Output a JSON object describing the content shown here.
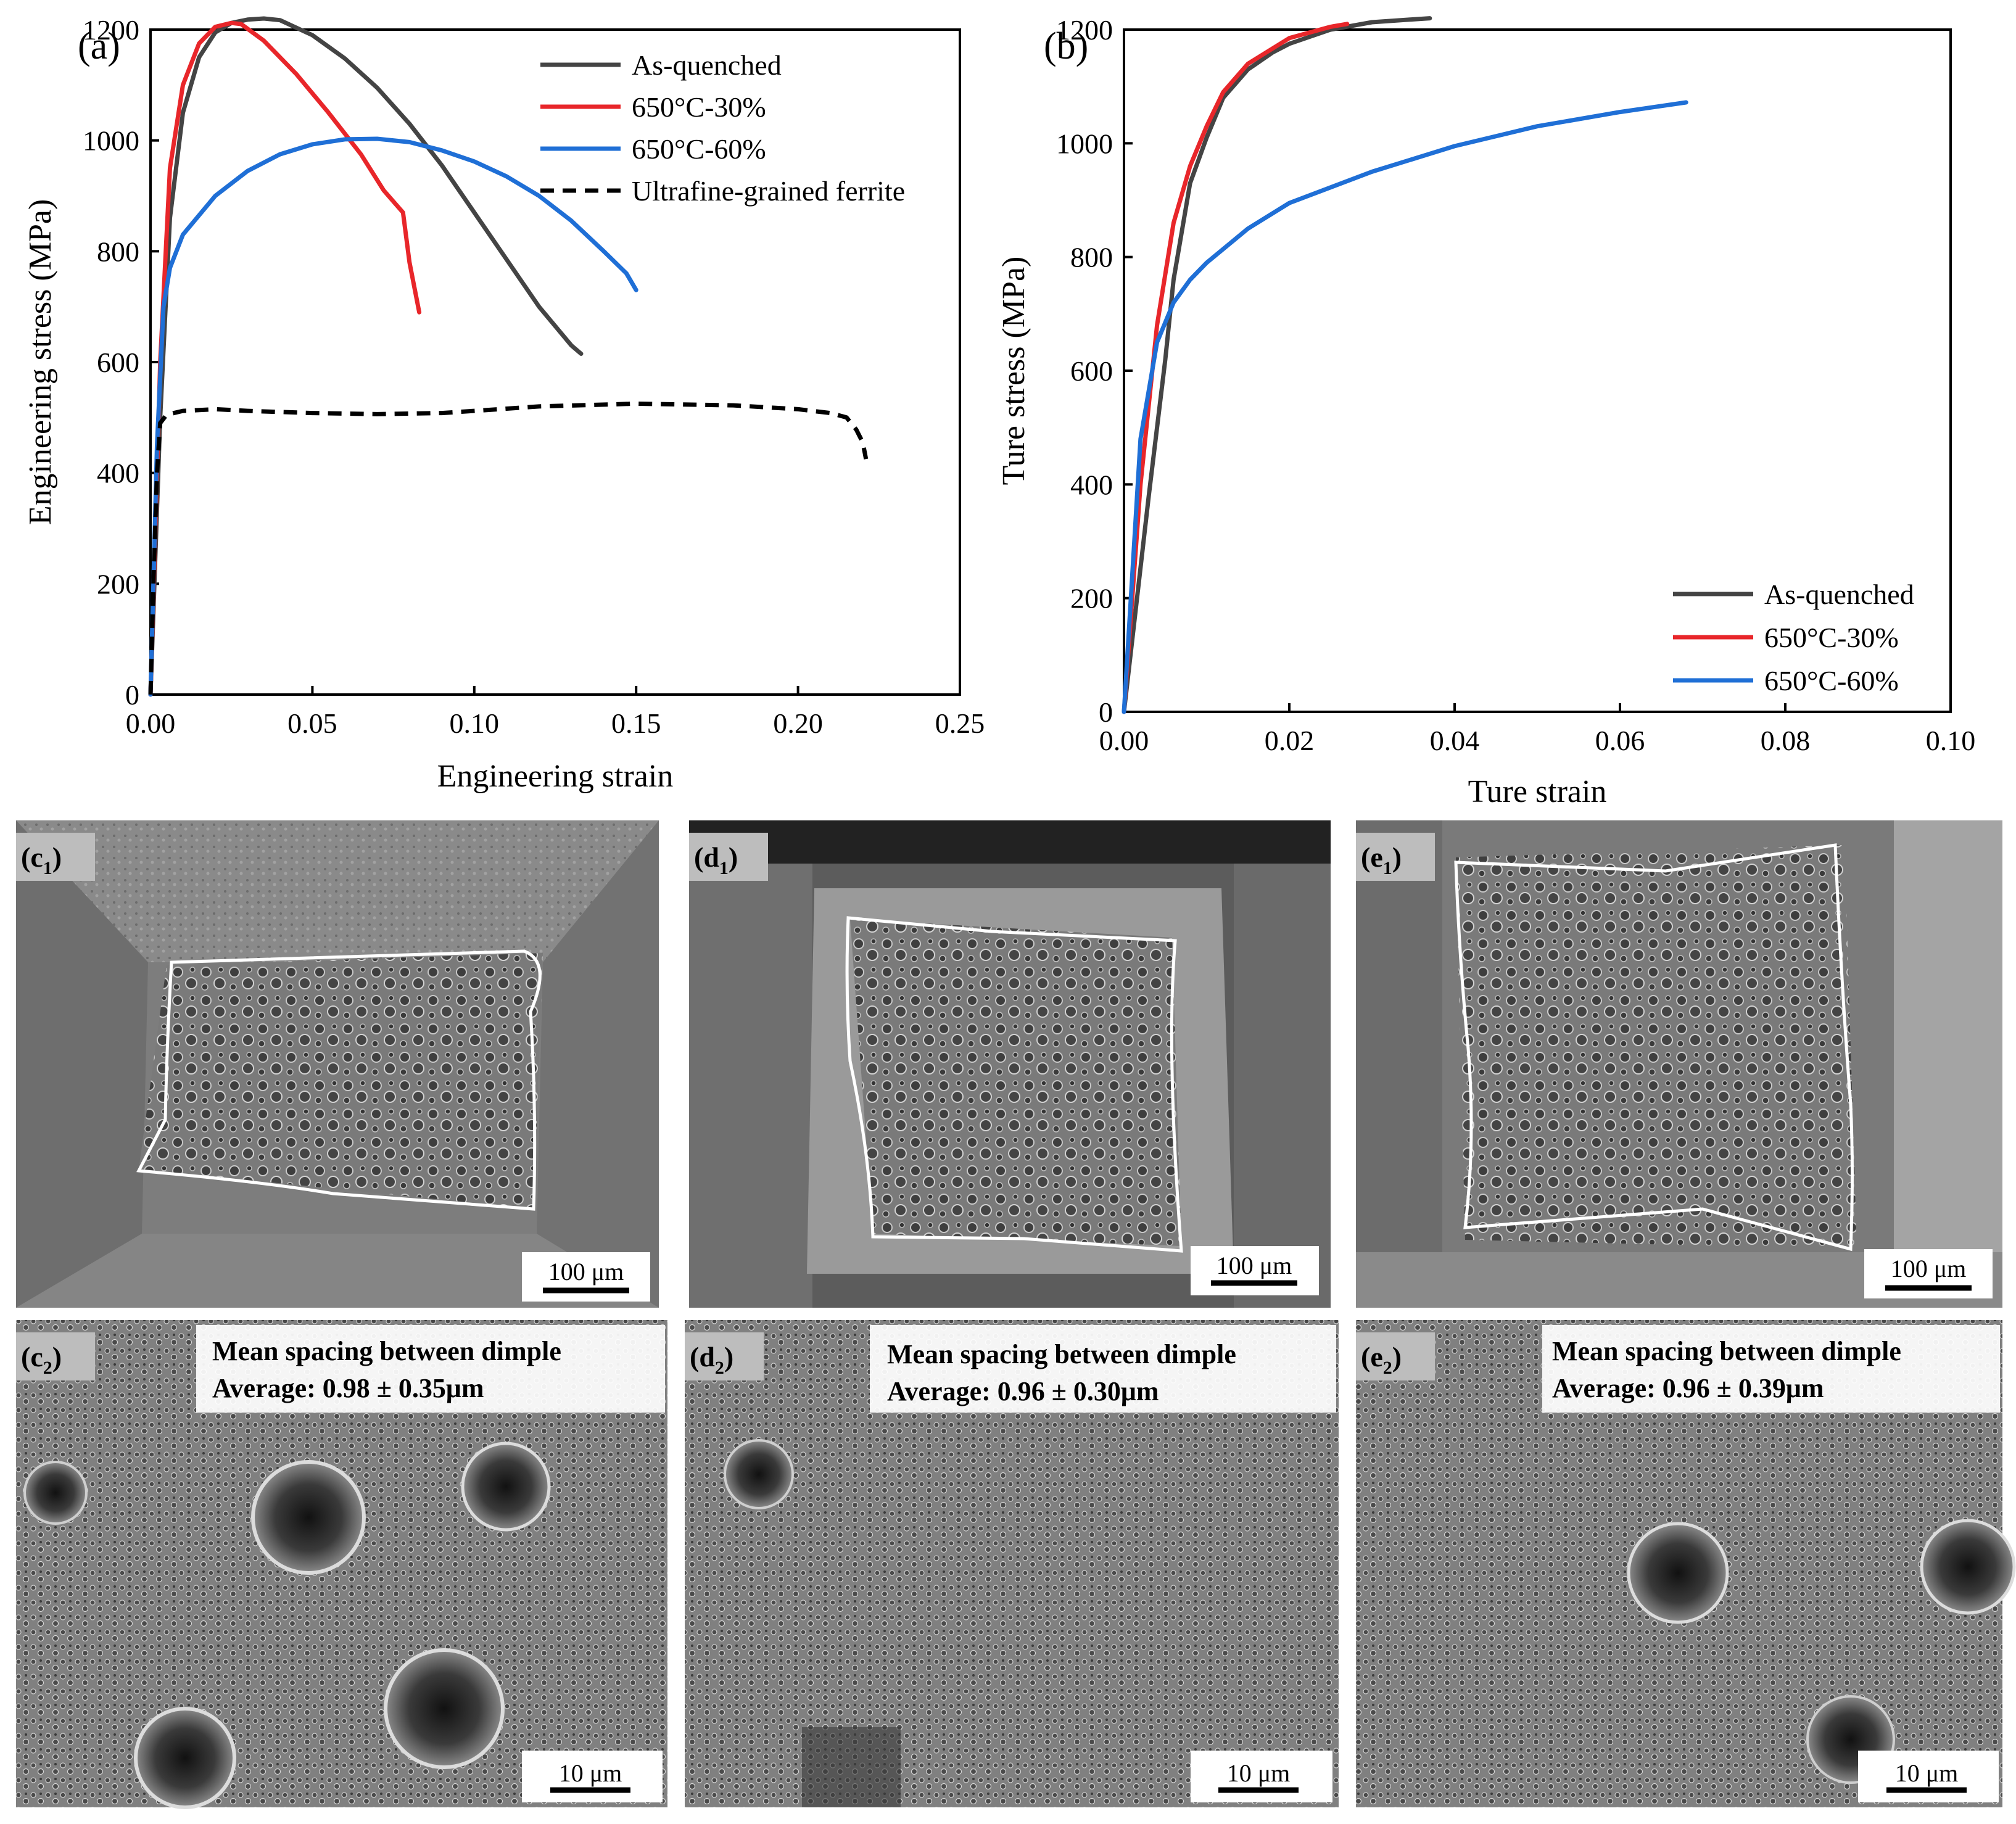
{
  "chart_data": [
    {
      "panel_label": "(a)",
      "type": "line",
      "xlabel": "Engineering strain",
      "ylabel": "Engineering stress (MPa)",
      "xlim": [
        0,
        0.25
      ],
      "ylim": [
        0,
        1200
      ],
      "xticks": [
        "0.00",
        "0.05",
        "0.10",
        "0.15",
        "0.20",
        "0.25"
      ],
      "yticks": [
        "0",
        "200",
        "400",
        "600",
        "800",
        "1000",
        "1200"
      ],
      "legend_position": "top-right",
      "series": [
        {
          "name": "As-quenched",
          "color": "#444444",
          "style": "solid",
          "x": [
            0.0,
            0.003,
            0.006,
            0.01,
            0.015,
            0.02,
            0.025,
            0.03,
            0.035,
            0.04,
            0.05,
            0.06,
            0.07,
            0.08,
            0.09,
            0.1,
            0.11,
            0.12,
            0.13,
            0.133
          ],
          "y": [
            0,
            500,
            860,
            1050,
            1150,
            1195,
            1212,
            1218,
            1220,
            1217,
            1190,
            1148,
            1095,
            1030,
            955,
            870,
            785,
            700,
            630,
            615
          ]
        },
        {
          "name": "650°C-30%",
          "color": "#e8262a",
          "style": "solid",
          "x": [
            0.0,
            0.003,
            0.006,
            0.01,
            0.015,
            0.02,
            0.025,
            0.028,
            0.035,
            0.045,
            0.055,
            0.065,
            0.072,
            0.078,
            0.08,
            0.083
          ],
          "y": [
            0,
            600,
            950,
            1100,
            1175,
            1205,
            1212,
            1210,
            1180,
            1120,
            1050,
            975,
            910,
            870,
            780,
            690
          ]
        },
        {
          "name": "650°C-60%",
          "color": "#1f6fd6",
          "style": "solid",
          "x": [
            0.0,
            0.002,
            0.004,
            0.006,
            0.01,
            0.02,
            0.03,
            0.04,
            0.05,
            0.06,
            0.07,
            0.08,
            0.09,
            0.1,
            0.11,
            0.12,
            0.13,
            0.14,
            0.147,
            0.15
          ],
          "y": [
            0,
            450,
            700,
            770,
            830,
            900,
            945,
            975,
            993,
            1002,
            1003,
            997,
            982,
            962,
            935,
            900,
            855,
            800,
            760,
            730
          ]
        },
        {
          "name": "Ultrafine-grained ferrite",
          "color": "#000000",
          "style": "dashed",
          "x": [
            0.0,
            0.001,
            0.002,
            0.003,
            0.005,
            0.01,
            0.02,
            0.03,
            0.05,
            0.07,
            0.09,
            0.1,
            0.12,
            0.15,
            0.18,
            0.2,
            0.21,
            0.215,
            0.218,
            0.22,
            0.221
          ],
          "y": [
            0,
            220,
            400,
            490,
            505,
            512,
            515,
            512,
            508,
            506,
            508,
            512,
            520,
            525,
            522,
            515,
            508,
            500,
            478,
            455,
            425
          ]
        }
      ]
    },
    {
      "panel_label": "(b)",
      "type": "line",
      "xlabel": "Ture strain",
      "ylabel": "Ture stress (MPa)",
      "xlim": [
        0,
        0.1
      ],
      "ylim": [
        0,
        1200
      ],
      "xticks": [
        "0.00",
        "0.02",
        "0.04",
        "0.06",
        "0.08",
        "0.10"
      ],
      "yticks": [
        "0",
        "200",
        "400",
        "600",
        "800",
        "1000",
        "1200"
      ],
      "legend_position": "bottom-right",
      "series": [
        {
          "name": "As-quenched",
          "color": "#444444",
          "style": "solid",
          "x": [
            0.0,
            0.003,
            0.005,
            0.006,
            0.008,
            0.01,
            0.012,
            0.015,
            0.018,
            0.02,
            0.025,
            0.03,
            0.035,
            0.037
          ],
          "y": [
            0,
            380,
            620,
            760,
            930,
            1010,
            1080,
            1130,
            1160,
            1175,
            1200,
            1213,
            1218,
            1220
          ]
        },
        {
          "name": "650°C-30%",
          "color": "#e8262a",
          "style": "solid",
          "x": [
            0.0,
            0.002,
            0.004,
            0.006,
            0.008,
            0.01,
            0.012,
            0.015,
            0.02,
            0.025,
            0.027
          ],
          "y": [
            0,
            400,
            680,
            860,
            960,
            1030,
            1090,
            1140,
            1185,
            1205,
            1210
          ]
        },
        {
          "name": "650°C-60%",
          "color": "#1f6fd6",
          "style": "solid",
          "x": [
            0.0,
            0.002,
            0.004,
            0.006,
            0.008,
            0.01,
            0.015,
            0.02,
            0.03,
            0.04,
            0.05,
            0.06,
            0.068
          ],
          "y": [
            0,
            480,
            650,
            720,
            760,
            790,
            850,
            895,
            950,
            995,
            1030,
            1055,
            1072
          ]
        }
      ]
    }
  ],
  "micrographs": {
    "c1": {
      "label": "(c",
      "sub": "1",
      "scale": "100 μm"
    },
    "d1": {
      "label": "(d",
      "sub": "1",
      "scale": "100 μm"
    },
    "e1": {
      "label": "(e",
      "sub": "1",
      "scale": "100 μm"
    },
    "c2": {
      "label": "(c",
      "sub": "2",
      "scale": "10 μm",
      "caption1": "Mean spacing between dimple",
      "caption2": "Average: 0.98 ± 0.35μm"
    },
    "d2": {
      "label": "(d",
      "sub": "2",
      "scale": "10 μm",
      "caption1": "Mean spacing between dimple",
      "caption2": "Average: 0.96 ± 0.30μm"
    },
    "e2": {
      "label": "(e",
      "sub": "2",
      "scale": "10 μm",
      "caption1": "Mean spacing between dimple",
      "caption2": "Average: 0.96 ± 0.39μm"
    }
  }
}
